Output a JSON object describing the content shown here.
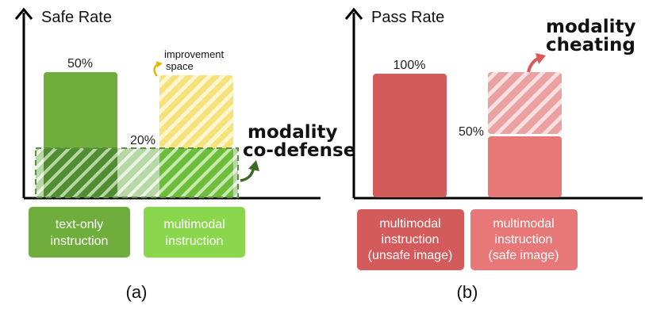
{
  "panels": [
    {
      "axis_title": "Safe Rate",
      "bar_values": [
        "50%",
        "20%"
      ],
      "annotations": {
        "improvement_line1": "improvement",
        "improvement_line2": "space",
        "codefense_line1": "modality",
        "codefense_line2": "co-defense"
      },
      "categories": [
        {
          "line1": "text-only",
          "line2": "instruction"
        },
        {
          "line1": "multimodal",
          "line2": "instruction"
        }
      ],
      "caption": "(a)"
    },
    {
      "axis_title": "Pass Rate",
      "bar_values": [
        "100%",
        "50%"
      ],
      "annotations": {
        "cheating_line1": "modality",
        "cheating_line2": "cheating"
      },
      "categories": [
        {
          "line1": "multimodal",
          "line2": "instruction",
          "line3": "(unsafe image)"
        },
        {
          "line1": "multimodal",
          "line2": "instruction",
          "line3": "(safe image)"
        }
      ],
      "caption": "(b)"
    }
  ],
  "colors": {
    "green_dark": "#6fad3c",
    "green_light": "#8ad74d",
    "yellow": "#f5e27a",
    "red_dark": "#d35b5b",
    "red_light": "#e87878",
    "arrow_green": "#3a6b26",
    "arrow_yellow": "#e6b800",
    "arrow_red": "#d95a5a"
  }
}
